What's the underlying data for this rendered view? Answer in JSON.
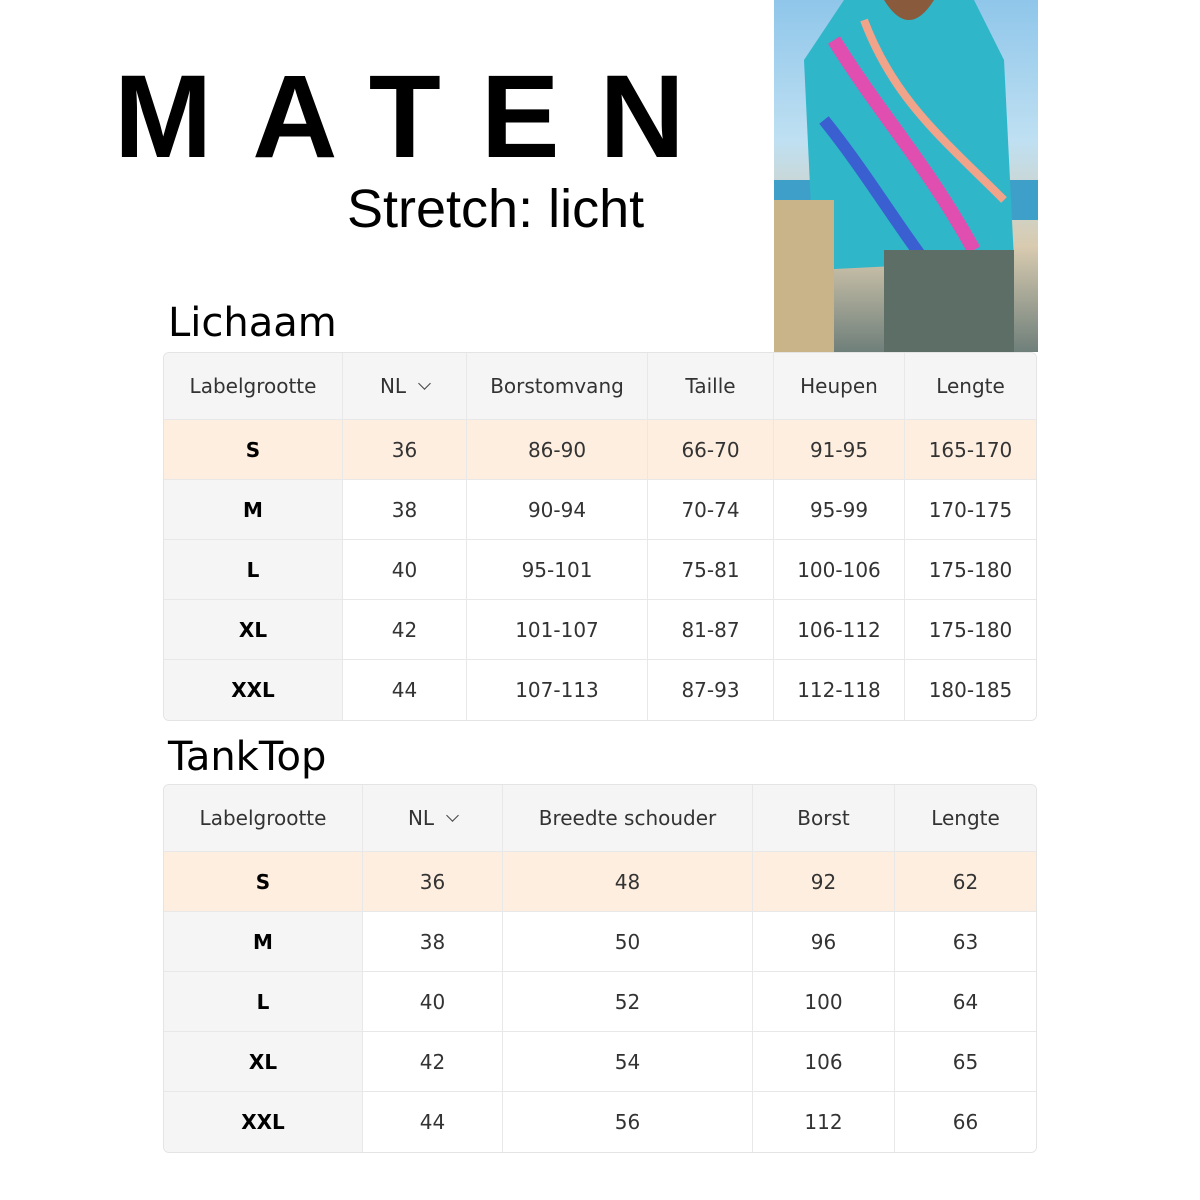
{
  "title": "MATEN",
  "stretch": "Stretch: licht",
  "accent_color": "#fdeee0",
  "body": {
    "heading": "Lichaam",
    "headers": [
      "Labelgrootte",
      "NL",
      "Borstomvang",
      "Taille",
      "Heupen",
      "Lengte"
    ],
    "rows": [
      [
        "S",
        "36",
        "86-90",
        "66-70",
        "91-95",
        "165-170"
      ],
      [
        "M",
        "38",
        "90-94",
        "70-74",
        "95-99",
        "170-175"
      ],
      [
        "L",
        "40",
        "95-101",
        "75-81",
        "100-106",
        "175-180"
      ],
      [
        "XL",
        "42",
        "101-107",
        "81-87",
        "106-112",
        "175-180"
      ],
      [
        "XXL",
        "44",
        "107-113",
        "87-93",
        "112-118",
        "180-185"
      ]
    ]
  },
  "tanktop": {
    "heading": "TankTop",
    "headers": [
      "Labelgrootte",
      "NL",
      "Breedte schouder",
      "Borst",
      "Lengte"
    ],
    "rows": [
      [
        "S",
        "36",
        "48",
        "92",
        "62"
      ],
      [
        "M",
        "38",
        "50",
        "96",
        "63"
      ],
      [
        "L",
        "40",
        "52",
        "100",
        "64"
      ],
      [
        "XL",
        "42",
        "54",
        "106",
        "65"
      ],
      [
        "XXL",
        "44",
        "56",
        "112",
        "66"
      ]
    ]
  }
}
